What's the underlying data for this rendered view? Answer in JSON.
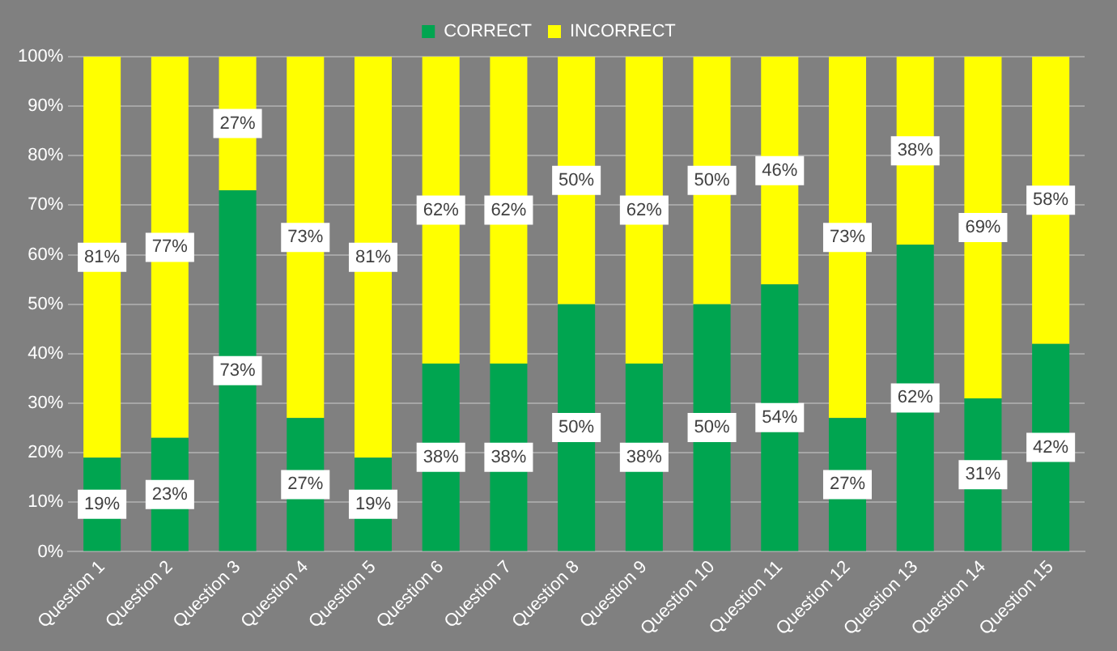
{
  "chart_data": {
    "type": "bar",
    "stacked": true,
    "categories": [
      "Question 1",
      "Question 2",
      "Question 3",
      "Question 4",
      "Question 5",
      "Question 6",
      "Question 7",
      "Question 8",
      "Question 9",
      "Question 10",
      "Question 11",
      "Question 12",
      "Question 13",
      "Question 14",
      "Question 15"
    ],
    "series": [
      {
        "name": "CORRECT",
        "color": "#00a550",
        "values": [
          19,
          23,
          73,
          27,
          19,
          38,
          38,
          50,
          38,
          50,
          54,
          27,
          62,
          31,
          42
        ],
        "value_labels": [
          "19%",
          "23%",
          "73%",
          "27%",
          "19%",
          "38%",
          "38%",
          "50%",
          "38%",
          "50%",
          "54%",
          "27%",
          "62%",
          "31%",
          "42%"
        ]
      },
      {
        "name": "INCORRECT",
        "color": "#ffff00",
        "values": [
          81,
          77,
          27,
          73,
          81,
          62,
          62,
          50,
          62,
          50,
          46,
          73,
          38,
          69,
          58
        ],
        "value_labels": [
          "81%",
          "77%",
          "27%",
          "73%",
          "81%",
          "62%",
          "62%",
          "50%",
          "62%",
          "50%",
          "46%",
          "73%",
          "38%",
          "69%",
          "58%"
        ]
      }
    ],
    "ylim": [
      0,
      100
    ],
    "yticks": [
      {
        "value": 0,
        "label": "0%"
      },
      {
        "value": 10,
        "label": "10%"
      },
      {
        "value": 20,
        "label": "20%"
      },
      {
        "value": 30,
        "label": "30%"
      },
      {
        "value": 40,
        "label": "40%"
      },
      {
        "value": 50,
        "label": "50%"
      },
      {
        "value": 60,
        "label": "60%"
      },
      {
        "value": 70,
        "label": "70%"
      },
      {
        "value": 80,
        "label": "80%"
      },
      {
        "value": 90,
        "label": "90%"
      },
      {
        "value": 100,
        "label": "100%"
      }
    ],
    "grid": "y",
    "legend": "top"
  }
}
